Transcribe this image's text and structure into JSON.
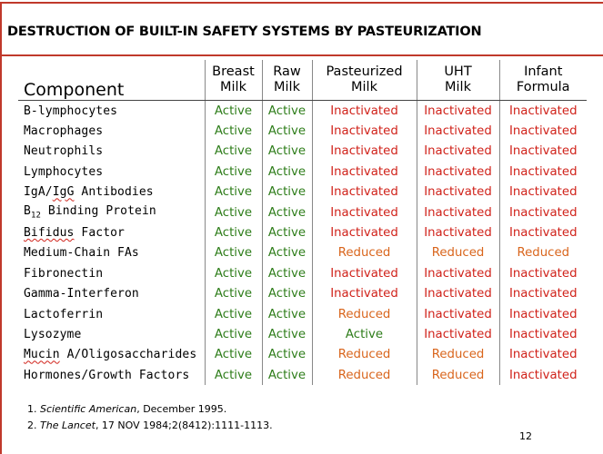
{
  "slide": {
    "title": "DESTRUCTION OF BUILT-IN SAFETY SYSTEMS BY PASTEURIZATION",
    "page_number": "12"
  },
  "table": {
    "headers": [
      {
        "line1": "Component",
        "line2": ""
      },
      {
        "line1": "Breast",
        "line2": "Milk"
      },
      {
        "line1": "Raw",
        "line2": "Milk"
      },
      {
        "line1": "Pasteurized",
        "line2": "Milk"
      },
      {
        "line1": "UHT",
        "line2": "Milk"
      },
      {
        "line1": "Infant",
        "line2": "Formula"
      }
    ],
    "rows": [
      {
        "name": "B-lymphocytes",
        "values": [
          "Active",
          "Active",
          "Inactivated",
          "Inactivated",
          "Inactivated"
        ]
      },
      {
        "name": "Macrophages",
        "values": [
          "Active",
          "Active",
          "Inactivated",
          "Inactivated",
          "Inactivated"
        ]
      },
      {
        "name": "Neutrophils",
        "values": [
          "Active",
          "Active",
          "Inactivated",
          "Inactivated",
          "Inactivated"
        ]
      },
      {
        "name": "Lymphocytes",
        "values": [
          "Active",
          "Active",
          "Inactivated",
          "Inactivated",
          "Inactivated"
        ]
      },
      {
        "name_parts": [
          "IgA/",
          "IgG",
          " Antibodies"
        ],
        "values": [
          "Active",
          "Active",
          "Inactivated",
          "Inactivated",
          "Inactivated"
        ]
      },
      {
        "name_parts": [
          "B",
          "12",
          " Binding Protein"
        ],
        "values": [
          "Active",
          "Active",
          "Inactivated",
          "Inactivated",
          "Inactivated"
        ]
      },
      {
        "name_parts": [
          "Bifidus",
          " Factor"
        ],
        "values": [
          "Active",
          "Active",
          "Inactivated",
          "Inactivated",
          "Inactivated"
        ]
      },
      {
        "name": "Medium-Chain FAs",
        "values": [
          "Active",
          "Active",
          "Reduced",
          "Reduced",
          "Reduced"
        ]
      },
      {
        "name": "Fibronectin",
        "values": [
          "Active",
          "Active",
          "Inactivated",
          "Inactivated",
          "Inactivated"
        ]
      },
      {
        "name": "Gamma-Interferon",
        "values": [
          "Active",
          "Active",
          "Inactivated",
          "Inactivated",
          "Inactivated"
        ]
      },
      {
        "name": "Lactoferrin",
        "values": [
          "Active",
          "Active",
          "Reduced",
          "Inactivated",
          "Inactivated"
        ]
      },
      {
        "name": "Lysozyme",
        "values": [
          "Active",
          "Active",
          "Active",
          "Inactivated",
          "Inactivated"
        ]
      },
      {
        "name_parts": [
          "Mucin",
          " A/Oligosaccharides"
        ],
        "values": [
          "Active",
          "Active",
          "Reduced",
          "Reduced",
          "Inactivated"
        ]
      },
      {
        "name": "Hormones/Growth Factors",
        "values": [
          "Active",
          "Active",
          "Reduced",
          "Reduced",
          "Inactivated"
        ]
      }
    ]
  },
  "references": [
    {
      "num": "1.",
      "italic": "Scientific American",
      "rest": ", December 1995."
    },
    {
      "num": "2.",
      "italic": "The Lancet",
      "rest": ", 17 NOV 1984;2(8412):1111-1113."
    }
  ],
  "colors": {
    "accent_red": "#c0392b",
    "active": "#2e7d1a",
    "inactivated": "#d0221a",
    "reduced": "#d9651c"
  }
}
